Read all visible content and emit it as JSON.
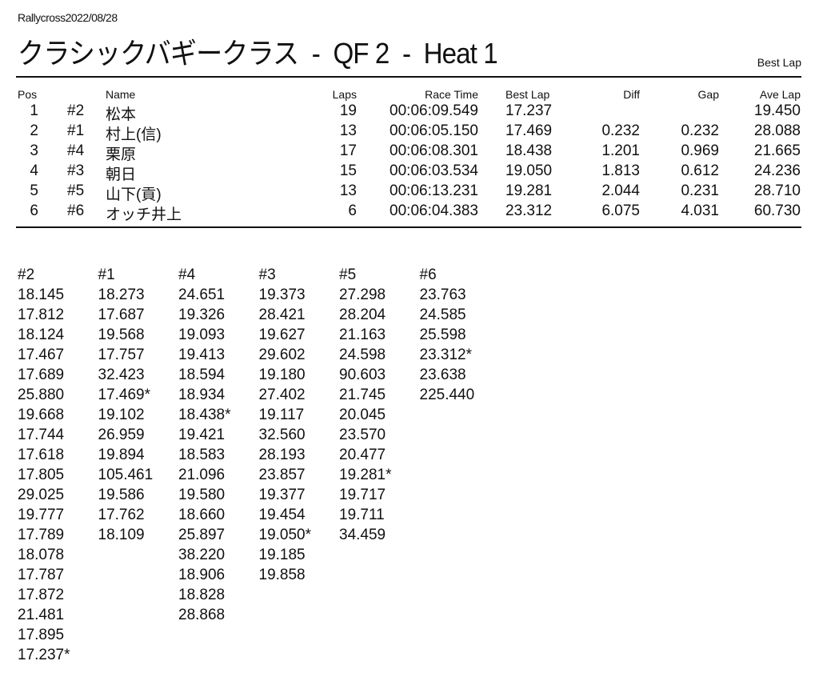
{
  "header": {
    "event": "Rallycross2022/08/28",
    "title": "クラシックバギークラス  -  QF 2  -  Heat 1",
    "report_type": "Best Lap"
  },
  "results": {
    "columns": [
      "Pos",
      "",
      "Name",
      "Laps",
      "Race Time",
      "Best Lap",
      "Diff",
      "Gap",
      "Ave Lap"
    ],
    "rows": [
      {
        "pos": "1",
        "no": "#2",
        "name": "松本",
        "laps": "19",
        "race_time": "00:06:09.549",
        "best_lap": "17.237",
        "diff": "",
        "gap": "",
        "ave_lap": "19.450"
      },
      {
        "pos": "2",
        "no": "#1",
        "name": "村上(信)",
        "laps": "13",
        "race_time": "00:06:05.150",
        "best_lap": "17.469",
        "diff": "0.232",
        "gap": "0.232",
        "ave_lap": "28.088"
      },
      {
        "pos": "3",
        "no": "#4",
        "name": "栗原",
        "laps": "17",
        "race_time": "00:06:08.301",
        "best_lap": "18.438",
        "diff": "1.201",
        "gap": "0.969",
        "ave_lap": "21.665"
      },
      {
        "pos": "4",
        "no": "#3",
        "name": "朝日",
        "laps": "15",
        "race_time": "00:06:03.534",
        "best_lap": "19.050",
        "diff": "1.813",
        "gap": "0.612",
        "ave_lap": "24.236"
      },
      {
        "pos": "5",
        "no": "#5",
        "name": "山下(貢)",
        "laps": "13",
        "race_time": "00:06:13.231",
        "best_lap": "19.281",
        "diff": "2.044",
        "gap": "0.231",
        "ave_lap": "28.710"
      },
      {
        "pos": "6",
        "no": "#6",
        "name": "オッチ井上",
        "laps": "6",
        "race_time": "00:06:04.383",
        "best_lap": "23.312",
        "diff": "6.075",
        "gap": "4.031",
        "ave_lap": "60.730"
      }
    ]
  },
  "lap_times": [
    {
      "car": "#2",
      "laps": [
        "18.145",
        "17.812",
        "18.124",
        "17.467",
        "17.689",
        "25.880",
        "19.668",
        "17.744",
        "17.618",
        "17.805",
        "29.025",
        "19.777",
        "17.789",
        "18.078",
        "17.787",
        "17.872",
        "21.481",
        "17.895",
        "17.237*"
      ]
    },
    {
      "car": "#1",
      "laps": [
        "18.273",
        "17.687",
        "19.568",
        "17.757",
        "32.423",
        "17.469*",
        "19.102",
        "26.959",
        "19.894",
        "105.461",
        "19.586",
        "17.762",
        "18.109"
      ]
    },
    {
      "car": "#4",
      "laps": [
        "24.651",
        "19.326",
        "19.093",
        "19.413",
        "18.594",
        "18.934",
        "18.438*",
        "19.421",
        "18.583",
        "21.096",
        "19.580",
        "18.660",
        "25.897",
        "38.220",
        "18.906",
        "18.828",
        "28.868"
      ]
    },
    {
      "car": "#3",
      "laps": [
        "19.373",
        "28.421",
        "19.627",
        "29.602",
        "19.180",
        "27.402",
        "19.117",
        "32.560",
        "28.193",
        "23.857",
        "19.377",
        "19.454",
        "19.050*",
        "19.185",
        "19.858"
      ]
    },
    {
      "car": "#5",
      "laps": [
        "27.298",
        "28.204",
        "21.163",
        "24.598",
        "90.603",
        "21.745",
        "20.045",
        "23.570",
        "20.477",
        "19.281*",
        "19.717",
        "19.711",
        "34.459"
      ]
    },
    {
      "car": "#6",
      "laps": [
        "23.763",
        "24.585",
        "25.598",
        "23.312*",
        "23.638",
        "225.440"
      ]
    }
  ]
}
